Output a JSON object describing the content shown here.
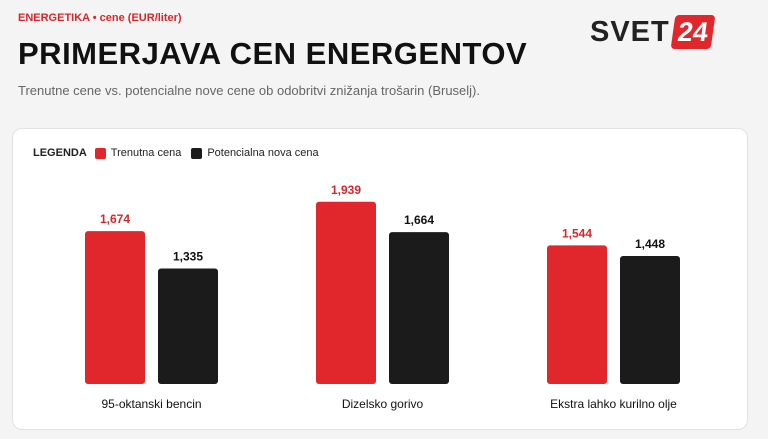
{
  "header": {
    "kicker": "ENERGETIKA • cene (EUR/liter)",
    "title": "PRIMERJAVA CEN ENERGENTOV",
    "subtitle": "Trenutne cene vs. potencialne nove cene ob odobritvi znižanja trošarin (Bruselj).",
    "logo_text": "SVET",
    "logo_number": "24"
  },
  "colors": {
    "current": "#e1262c",
    "new": "#1b1b1b",
    "current_label": "#d7262b",
    "new_label": "#111111"
  },
  "legend": {
    "title": "LEGENDA",
    "items": [
      "Trenutna cena",
      "Potencialna nova cena"
    ]
  },
  "chart_data": {
    "type": "bar",
    "categories": [
      "95-oktanski bencin",
      "Dizelsko gorivo",
      "Ekstra lahko kurilno olje"
    ],
    "series": [
      {
        "name": "Trenutna cena",
        "values": [
          1.674,
          1.939,
          1.544
        ],
        "labels": [
          "1,674",
          "1,939",
          "1,544"
        ]
      },
      {
        "name": "Potencialna nova cena",
        "values": [
          1.335,
          1.664,
          1.448
        ],
        "labels": [
          "1,335",
          "1,664",
          "1,448"
        ]
      }
    ],
    "ylim": [
      0,
      2.1
    ],
    "grid": false,
    "legend_position": "top-left",
    "title": "",
    "xlabel": "",
    "ylabel": ""
  }
}
